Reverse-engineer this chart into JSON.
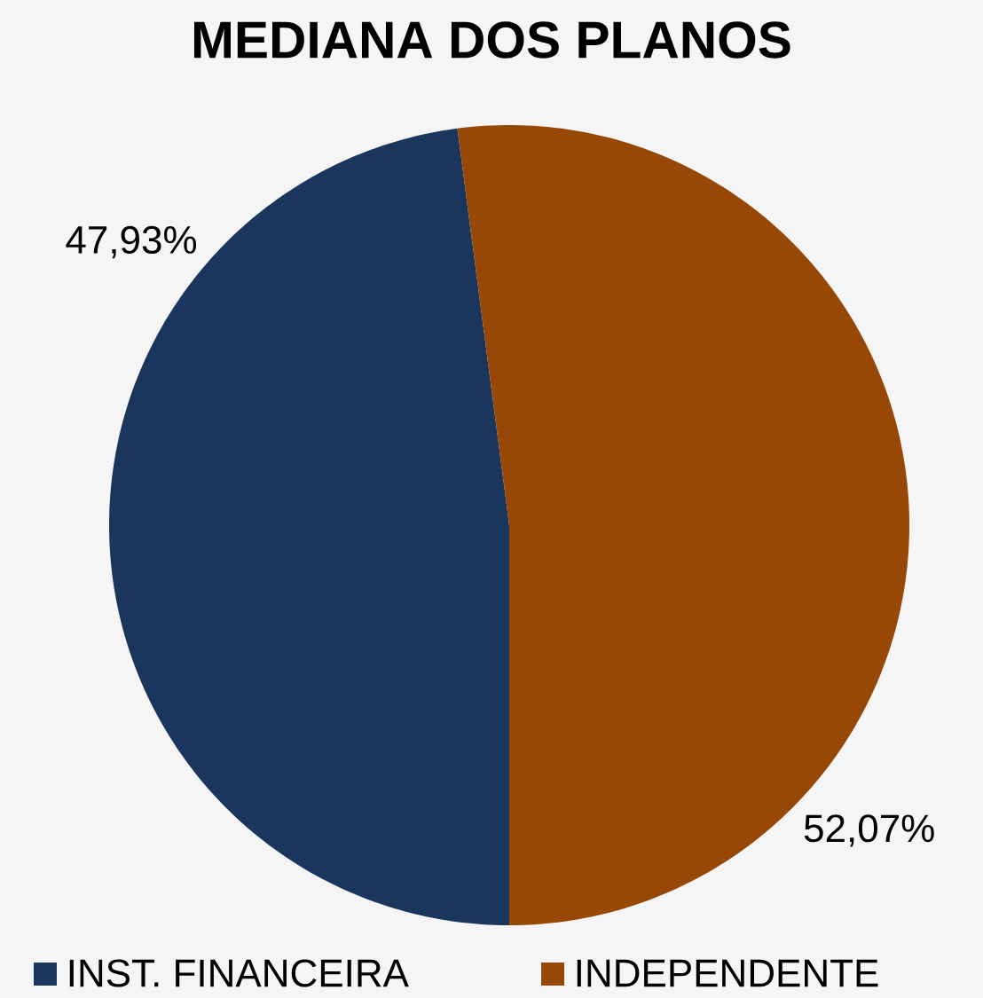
{
  "chart_data": {
    "type": "pie",
    "title": "MEDIANA DOS PLANOS",
    "categories": [
      "INST. FINANCEIRA",
      "INDEPENDENTE"
    ],
    "values": [
      47.93,
      52.07
    ],
    "colors": [
      "#1a365d",
      "#974706"
    ],
    "value_labels": [
      "47,93%",
      "52,07%"
    ],
    "legend": "bottom"
  }
}
